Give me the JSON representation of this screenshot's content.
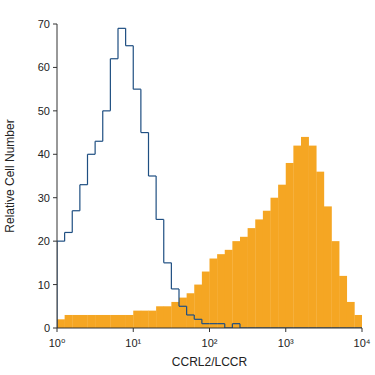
{
  "chart_data": {
    "type": "histogram",
    "x_label": "CCRL2/LCCR",
    "y_label": "Relative Cell Number",
    "log": "x",
    "bins": [
      1,
      1.259,
      1.585,
      1.995,
      2.512,
      3.162,
      3.981,
      5.012,
      6.31,
      7.943,
      10,
      12.59,
      15.85,
      19.95,
      25.12,
      31.62,
      39.81,
      50.12,
      63.1,
      79.43,
      100,
      125.9,
      158.5,
      199.5,
      251.2,
      316.2,
      398.1,
      501.2,
      631,
      794.3,
      1000,
      1259,
      1585,
      1995,
      2512,
      3162,
      3981,
      5012,
      6310,
      7943,
      10000
    ],
    "series": [
      {
        "type": "step",
        "color": "#1f4f82",
        "values": [
          20,
          22,
          27,
          33,
          40,
          43,
          50,
          62,
          69,
          65,
          55,
          45,
          35,
          25,
          15,
          9,
          5,
          3,
          2,
          1,
          1,
          1,
          0,
          1,
          0,
          0,
          0,
          0,
          0,
          0,
          0,
          0,
          0,
          0,
          0,
          0,
          0,
          0,
          0,
          0
        ]
      },
      {
        "type": "bar",
        "color": "#f5a623",
        "values": [
          2,
          3,
          3,
          3,
          3,
          3,
          3,
          3,
          3,
          3,
          4,
          4,
          4,
          5,
          5,
          6,
          7,
          8,
          10,
          13,
          16,
          17,
          18,
          20,
          21,
          23,
          25,
          27,
          30,
          33,
          38,
          42,
          44,
          42,
          36,
          28,
          20,
          12,
          6,
          3
        ]
      }
    ],
    "xlim": [
      1,
      10000
    ],
    "xticks": [
      {
        "value": 1,
        "label": "10⁰"
      },
      {
        "value": 10,
        "label": "10¹"
      },
      {
        "value": 100,
        "label": "10²"
      },
      {
        "value": 1000,
        "label": "10³"
      },
      {
        "value": 10000,
        "label": "10⁴"
      }
    ],
    "ylim": [
      0,
      70
    ],
    "yticks": [
      0,
      10,
      20,
      30,
      40,
      50,
      60,
      70
    ],
    "grid": false
  }
}
